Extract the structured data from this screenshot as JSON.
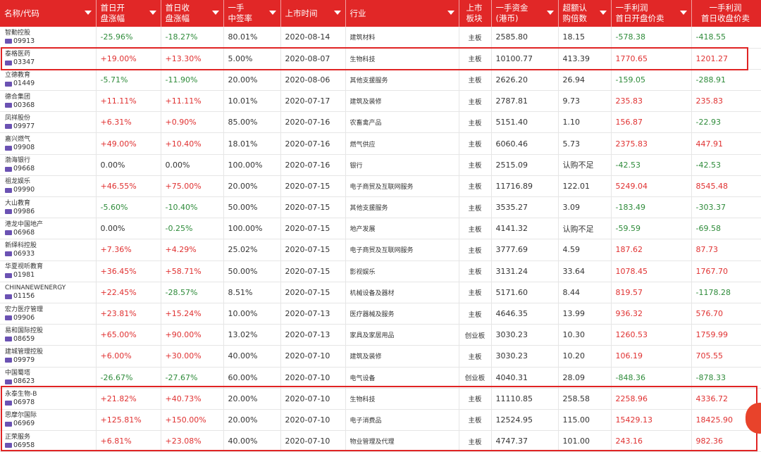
{
  "columns": [
    {
      "label": "名称/代码",
      "sort": true
    },
    {
      "label": "首日开\n盘涨幅",
      "sort": true
    },
    {
      "label": "首日收\n盘涨幅",
      "sort": true
    },
    {
      "label": "一手\n中签率",
      "sort": true
    },
    {
      "label": "上市时间",
      "sort": true
    },
    {
      "label": "行业",
      "sort": true
    },
    {
      "label": "上市\n板块",
      "sort": false
    },
    {
      "label": "一手资金\n(港币)",
      "sort": true
    },
    {
      "label": "超额认\n购倍数",
      "sort": true
    },
    {
      "label": "一手利润\n首日开盘价卖",
      "sort": true
    },
    {
      "label": "一手利润\n首日收盘价卖",
      "sort": false
    }
  ],
  "rows": [
    {
      "name": "智勤控股",
      "code": "09913",
      "open": "-25.96%",
      "close": "-18.27%",
      "rate": "80.01%",
      "date": "2020-08-14",
      "industry": "建筑材料",
      "board": "主板",
      "capital": "2585.80",
      "oversub": "18.15",
      "profit_open": "-578.38",
      "profit_close": "-418.55"
    },
    {
      "name": "泰格医药",
      "code": "03347",
      "open": "+19.00%",
      "close": "+13.30%",
      "rate": "5.00%",
      "date": "2020-08-07",
      "industry": "生物科技",
      "board": "主板",
      "capital": "10100.77",
      "oversub": "413.39",
      "profit_open": "1770.65",
      "profit_close": "1201.27"
    },
    {
      "name": "立德教育",
      "code": "01449",
      "open": "-5.71%",
      "close": "-11.90%",
      "rate": "20.00%",
      "date": "2020-08-06",
      "industry": "其他支援服务",
      "board": "主板",
      "capital": "2626.20",
      "oversub": "26.94",
      "profit_open": "-159.05",
      "profit_close": "-288.91"
    },
    {
      "name": "德合集团",
      "code": "00368",
      "open": "+11.11%",
      "close": "+11.11%",
      "rate": "10.01%",
      "date": "2020-07-17",
      "industry": "建筑及装修",
      "board": "主板",
      "capital": "2787.81",
      "oversub": "9.73",
      "profit_open": "235.83",
      "profit_close": "235.83"
    },
    {
      "name": "凤祥股份",
      "code": "09977",
      "open": "+6.31%",
      "close": "+0.90%",
      "rate": "85.00%",
      "date": "2020-07-16",
      "industry": "农畜禽产品",
      "board": "主板",
      "capital": "5151.40",
      "oversub": "1.10",
      "profit_open": "156.87",
      "profit_close": "-22.93"
    },
    {
      "name": "嘉兴燃气",
      "code": "09908",
      "open": "+49.00%",
      "close": "+10.40%",
      "rate": "18.01%",
      "date": "2020-07-16",
      "industry": "燃气供应",
      "board": "主板",
      "capital": "6060.46",
      "oversub": "5.73",
      "profit_open": "2375.83",
      "profit_close": "447.91"
    },
    {
      "name": "渤海银行",
      "code": "09668",
      "open": "0.00%",
      "close": "0.00%",
      "rate": "100.00%",
      "date": "2020-07-16",
      "industry": "银行",
      "board": "主板",
      "capital": "2515.09",
      "oversub": "认购不足",
      "profit_open": "-42.53",
      "profit_close": "-42.53"
    },
    {
      "name": "祖龙娱乐",
      "code": "09990",
      "open": "+46.55%",
      "close": "+75.00%",
      "rate": "20.00%",
      "date": "2020-07-15",
      "industry": "电子商贸及互联网服务",
      "board": "主板",
      "capital": "11716.89",
      "oversub": "122.01",
      "profit_open": "5249.04",
      "profit_close": "8545.48"
    },
    {
      "name": "大山教育",
      "code": "09986",
      "open": "-5.60%",
      "close": "-10.40%",
      "rate": "50.00%",
      "date": "2020-07-15",
      "industry": "其他支援服务",
      "board": "主板",
      "capital": "3535.27",
      "oversub": "3.09",
      "profit_open": "-183.49",
      "profit_close": "-303.37"
    },
    {
      "name": "港龙中国地产",
      "code": "06968",
      "open": "0.00%",
      "close": "-0.25%",
      "rate": "100.00%",
      "date": "2020-07-15",
      "industry": "地产发展",
      "board": "主板",
      "capital": "4141.32",
      "oversub": "认购不足",
      "profit_open": "-59.59",
      "profit_close": "-69.58"
    },
    {
      "name": "新绎科控股",
      "code": "06933",
      "open": "+7.36%",
      "close": "+4.29%",
      "rate": "25.02%",
      "date": "2020-07-15",
      "industry": "电子商贸及互联网服务",
      "board": "主板",
      "capital": "3777.69",
      "oversub": "4.59",
      "profit_open": "187.62",
      "profit_close": "87.73"
    },
    {
      "name": "华夏视听教育",
      "code": "01981",
      "open": "+36.45%",
      "close": "+58.71%",
      "rate": "50.00%",
      "date": "2020-07-15",
      "industry": "影视娱乐",
      "board": "主板",
      "capital": "3131.24",
      "oversub": "33.64",
      "profit_open": "1078.45",
      "profit_close": "1767.70"
    },
    {
      "name": "CHINANEWENERGY",
      "code": "01156",
      "open": "+22.45%",
      "close": "-28.57%",
      "rate": "8.51%",
      "date": "2020-07-15",
      "industry": "机械设备及器材",
      "board": "主板",
      "capital": "5171.60",
      "oversub": "8.44",
      "profit_open": "819.57",
      "profit_close": "-1178.28"
    },
    {
      "name": "宏力医疗管理",
      "code": "09906",
      "open": "+23.81%",
      "close": "+15.24%",
      "rate": "10.00%",
      "date": "2020-07-13",
      "industry": "医疗器械及服务",
      "board": "主板",
      "capital": "4646.35",
      "oversub": "13.99",
      "profit_open": "936.32",
      "profit_close": "576.70"
    },
    {
      "name": "易和国际控股",
      "code": "08659",
      "open": "+65.00%",
      "close": "+90.00%",
      "rate": "13.02%",
      "date": "2020-07-13",
      "industry": "家具及家居用品",
      "board": "创业板",
      "capital": "3030.23",
      "oversub": "10.30",
      "profit_open": "1260.53",
      "profit_close": "1759.99"
    },
    {
      "name": "建城管理控股",
      "code": "09979",
      "open": "+6.00%",
      "close": "+30.00%",
      "rate": "40.00%",
      "date": "2020-07-10",
      "industry": "建筑及装修",
      "board": "主板",
      "capital": "3030.23",
      "oversub": "10.20",
      "profit_open": "106.19",
      "profit_close": "705.55"
    },
    {
      "name": "中国蜀塔",
      "code": "08623",
      "open": "-26.67%",
      "close": "-27.67%",
      "rate": "60.00%",
      "date": "2020-07-10",
      "industry": "电气设备",
      "board": "创业板",
      "capital": "4040.31",
      "oversub": "28.09",
      "profit_open": "-848.36",
      "profit_close": "-878.33"
    },
    {
      "name": "永泰生物-B",
      "code": "06978",
      "open": "+21.82%",
      "close": "+40.73%",
      "rate": "20.00%",
      "date": "2020-07-10",
      "industry": "生物科技",
      "board": "主板",
      "capital": "11110.85",
      "oversub": "258.58",
      "profit_open": "2258.96",
      "profit_close": "4336.72"
    },
    {
      "name": "思摩尔国际",
      "code": "06969",
      "open": "+125.81%",
      "close": "+150.00%",
      "rate": "20.00%",
      "date": "2020-07-10",
      "industry": "电子消费品",
      "board": "主板",
      "capital": "12524.95",
      "oversub": "115.00",
      "profit_open": "15429.13",
      "profit_close": "18425.90"
    },
    {
      "name": "正荣服务",
      "code": "06958",
      "open": "+6.81%",
      "close": "+23.08%",
      "rate": "40.00%",
      "date": "2020-07-10",
      "industry": "物业管理及代理",
      "board": "主板",
      "capital": "4747.37",
      "oversub": "101.00",
      "profit_open": "243.16",
      "profit_close": "982.36"
    }
  ],
  "colors": {
    "header": "#e12727",
    "positive": "#e03131",
    "negative": "#2e8b3a",
    "highlight": "#e02424"
  },
  "icons": {
    "market_badge": "hk-market-badge-icon",
    "sort": "sort-down-arrow-icon",
    "float_button": "floating-action-button"
  }
}
